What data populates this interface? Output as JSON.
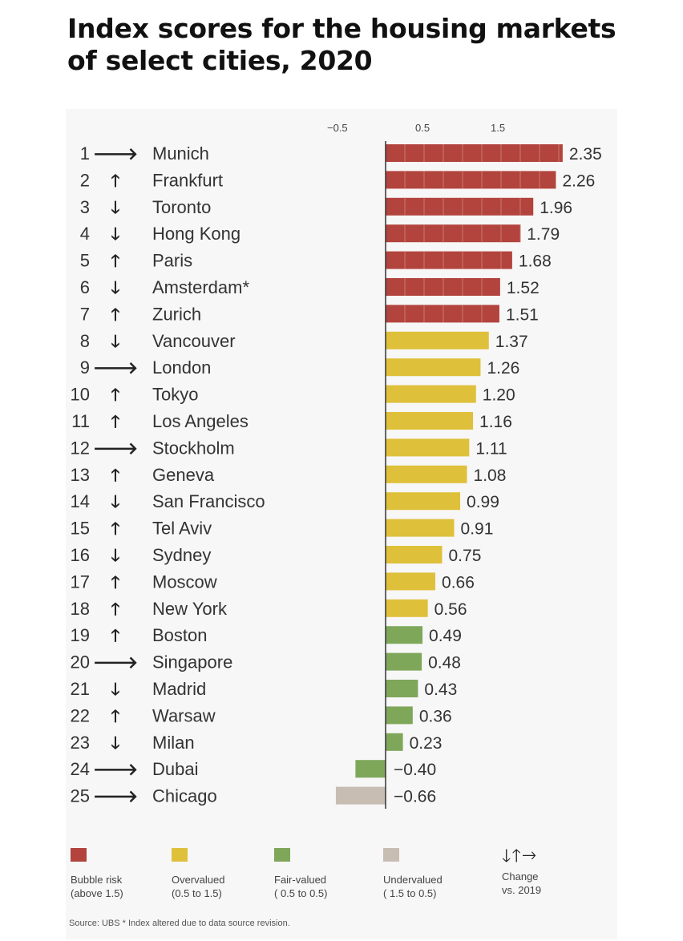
{
  "title": "Index scores for the housing markets of select cities, 2020",
  "chart_data": {
    "type": "bar",
    "orientation": "horizontal",
    "title": "Index scores for the housing markets of select cities, 2020",
    "xlabel": "",
    "ylabel": "",
    "x_ticks": [
      "−0.5",
      "0.5",
      "1.5"
    ],
    "xlim": [
      -0.75,
      2.5
    ],
    "grid": false,
    "colors": {
      "bubble": "#b2443d",
      "overvalued": "#dfc03a",
      "fair": "#7fa75a",
      "under": "#c8bdb3"
    },
    "rows": [
      {
        "rank": "1",
        "change": "right",
        "city": "Munich",
        "value": 2.35,
        "label": "2.35",
        "cat": "bubble"
      },
      {
        "rank": "2",
        "change": "up",
        "city": "Frankfurt",
        "value": 2.26,
        "label": "2.26",
        "cat": "bubble"
      },
      {
        "rank": "3",
        "change": "down",
        "city": "Toronto",
        "value": 1.96,
        "label": "1.96",
        "cat": "bubble"
      },
      {
        "rank": "4",
        "change": "down",
        "city": "Hong Kong",
        "value": 1.79,
        "label": "1.79",
        "cat": "bubble"
      },
      {
        "rank": "5",
        "change": "up",
        "city": "Paris",
        "value": 1.68,
        "label": "1.68",
        "cat": "bubble"
      },
      {
        "rank": "6",
        "change": "down",
        "city": "Amsterdam*",
        "value": 1.52,
        "label": "1.52",
        "cat": "bubble"
      },
      {
        "rank": "7",
        "change": "up",
        "city": "Zurich",
        "value": 1.51,
        "label": "1.51",
        "cat": "bubble"
      },
      {
        "rank": "8",
        "change": "down",
        "city": "Vancouver",
        "value": 1.37,
        "label": "1.37",
        "cat": "overvalued"
      },
      {
        "rank": "9",
        "change": "right",
        "city": "London",
        "value": 1.26,
        "label": "1.26",
        "cat": "overvalued"
      },
      {
        "rank": "10",
        "change": "up",
        "city": "Tokyo",
        "value": 1.2,
        "label": "1.20",
        "cat": "overvalued"
      },
      {
        "rank": "11",
        "change": "up",
        "city": "Los Angeles",
        "value": 1.16,
        "label": "1.16",
        "cat": "overvalued"
      },
      {
        "rank": "12",
        "change": "right",
        "city": "Stockholm",
        "value": 1.11,
        "label": "1.11",
        "cat": "overvalued"
      },
      {
        "rank": "13",
        "change": "up",
        "city": "Geneva",
        "value": 1.08,
        "label": "1.08",
        "cat": "overvalued"
      },
      {
        "rank": "14",
        "change": "down",
        "city": "San Francisco",
        "value": 0.99,
        "label": "0.99",
        "cat": "overvalued"
      },
      {
        "rank": "15",
        "change": "up",
        "city": "Tel Aviv",
        "value": 0.91,
        "label": "0.91",
        "cat": "overvalued"
      },
      {
        "rank": "16",
        "change": "down",
        "city": "Sydney",
        "value": 0.75,
        "label": "0.75",
        "cat": "overvalued"
      },
      {
        "rank": "17",
        "change": "up",
        "city": "Moscow",
        "value": 0.66,
        "label": "0.66",
        "cat": "overvalued"
      },
      {
        "rank": "18",
        "change": "up",
        "city": "New York",
        "value": 0.56,
        "label": "0.56",
        "cat": "overvalued"
      },
      {
        "rank": "19",
        "change": "up",
        "city": "Boston",
        "value": 0.49,
        "label": "0.49",
        "cat": "fair"
      },
      {
        "rank": "20",
        "change": "right",
        "city": "Singapore",
        "value": 0.48,
        "label": "0.48",
        "cat": "fair"
      },
      {
        "rank": "21",
        "change": "down",
        "city": "Madrid",
        "value": 0.43,
        "label": "0.43",
        "cat": "fair"
      },
      {
        "rank": "22",
        "change": "up",
        "city": "Warsaw",
        "value": 0.36,
        "label": "0.36",
        "cat": "fair"
      },
      {
        "rank": "23",
        "change": "down",
        "city": "Milan",
        "value": 0.23,
        "label": "0.23",
        "cat": "fair"
      },
      {
        "rank": "24",
        "change": "right",
        "city": "Dubai",
        "value": -0.4,
        "label": "−0.40",
        "cat": "fair"
      },
      {
        "rank": "25",
        "change": "right",
        "city": "Chicago",
        "value": -0.66,
        "label": "−0.66",
        "cat": "under"
      }
    ]
  },
  "arrow_glyphs": {
    "up": "🡑",
    "down": "🡓",
    "right": "🡒"
  },
  "legend": {
    "bubble": {
      "line1": "Bubble risk",
      "line2": "(above 1.5)"
    },
    "overvalued": {
      "line1": "Overvalued",
      "line2": "(0.5 to 1.5)"
    },
    "fair": {
      "line1": "Fair-valued",
      "line2": "( 0.5 to 0.5)"
    },
    "under": {
      "line1": "Undervalued",
      "line2": "( 1.5 to   0.5)"
    },
    "change": {
      "symbols": "🡓🡑🡒",
      "line1": "Change",
      "line2": "vs. 2019"
    }
  },
  "source": "Source: UBS  * Index altered due to data source revision."
}
